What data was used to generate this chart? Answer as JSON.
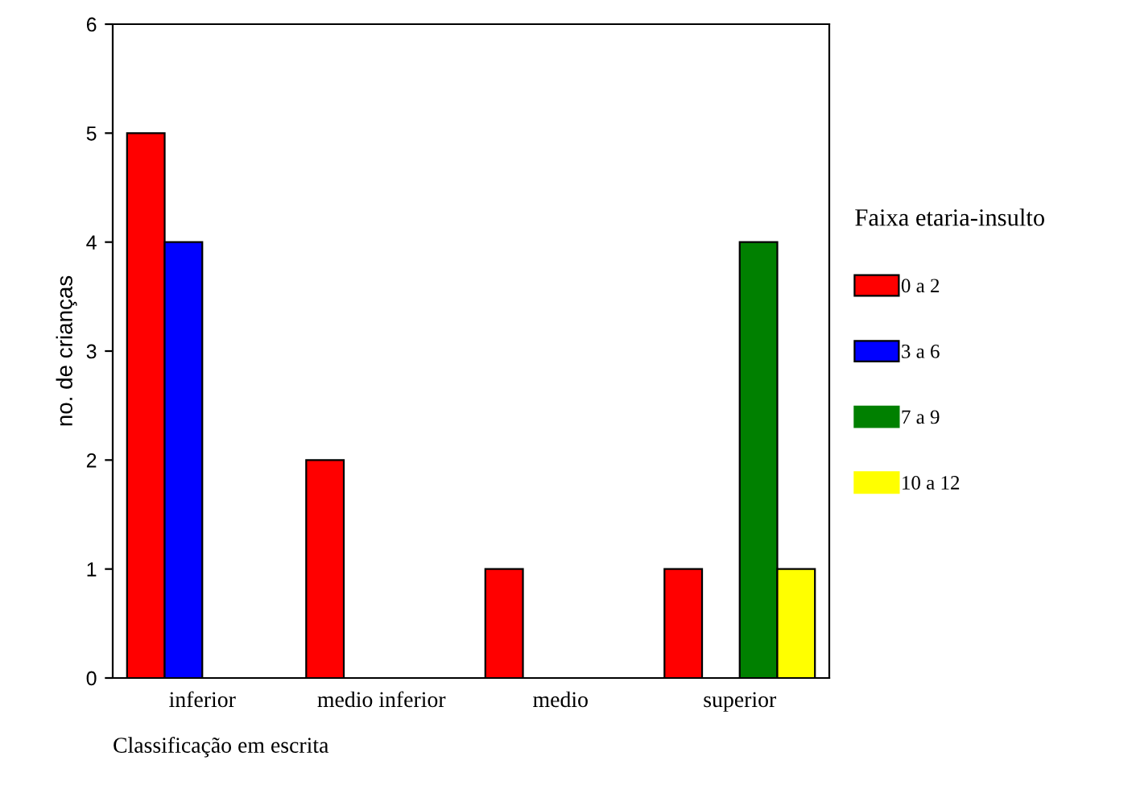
{
  "chart_data": {
    "type": "bar",
    "xlabel": "Classificação em escrita",
    "ylabel": "no. de crianças",
    "legend_title": "Faixa etaria-insulto",
    "categories": [
      "inferior",
      "medio inferior",
      "medio",
      "superior"
    ],
    "series": [
      {
        "name": "0 a 2",
        "color": "#ff0000",
        "values": [
          5,
          2,
          1,
          1
        ]
      },
      {
        "name": "3 a 6",
        "color": "#0000ff",
        "values": [
          4,
          0,
          0,
          0
        ]
      },
      {
        "name": "7 a 9",
        "color": "#008000",
        "values": [
          0,
          0,
          0,
          4
        ]
      },
      {
        "name": "10 a 12",
        "color": "#ffff00",
        "values": [
          0,
          0,
          0,
          1
        ]
      }
    ],
    "ylim": [
      0,
      6
    ],
    "yticks": [
      0,
      1,
      2,
      3,
      4,
      5,
      6
    ],
    "grid": false,
    "legend": "right"
  }
}
